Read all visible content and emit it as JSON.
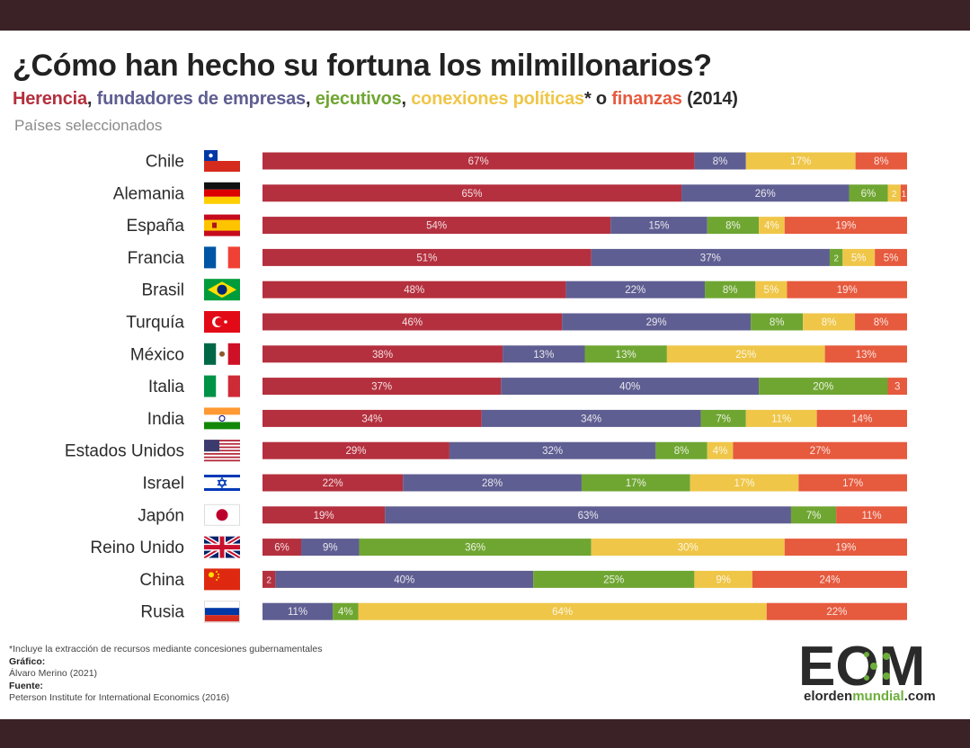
{
  "title": "¿Cómo han hecho su fortuna los milmillonarios?",
  "subtitle": {
    "parts": [
      {
        "text": "Herencia",
        "color": "#b4303e"
      },
      {
        "text": ", ",
        "color": "#2b2b2b"
      },
      {
        "text": "fundadores de empresas",
        "color": "#5f5e92"
      },
      {
        "text": ", ",
        "color": "#2b2b2b"
      },
      {
        "text": "ejecutivos",
        "color": "#6fa632"
      },
      {
        "text": ", ",
        "color": "#2b2b2b"
      },
      {
        "text": "conexiones políticas",
        "color": "#efc648"
      },
      {
        "text": "* o ",
        "color": "#2b2b2b"
      },
      {
        "text": "finanzas",
        "color": "#e65a3e"
      },
      {
        "text": " (2014)",
        "color": "#2b2b2b"
      }
    ]
  },
  "caption": "Países seleccionados",
  "chart_data": {
    "type": "bar",
    "stacked": true,
    "orientation": "horizontal",
    "xlim": [
      0,
      100
    ],
    "colors": [
      "#b4303e",
      "#5f5e92",
      "#6fa632",
      "#efc648",
      "#e65a3e"
    ],
    "countries": [
      {
        "name": "Chile",
        "flag": "chile-flag",
        "values": [
          67,
          8,
          0,
          17,
          8
        ],
        "labels": [
          "67%",
          "8%",
          "",
          "17%",
          "8%"
        ]
      },
      {
        "name": "Alemania",
        "flag": "germany-flag",
        "values": [
          65,
          26,
          6,
          2,
          1
        ],
        "labels": [
          "65%",
          "26%",
          "6%",
          "2",
          "1"
        ]
      },
      {
        "name": "España",
        "flag": "spain-flag",
        "values": [
          54,
          15,
          8,
          4,
          19
        ],
        "labels": [
          "54%",
          "15%",
          "8%",
          "4%",
          "19%"
        ]
      },
      {
        "name": "Francia",
        "flag": "france-flag",
        "values": [
          51,
          37,
          2,
          5,
          5
        ],
        "labels": [
          "51%",
          "37%",
          "2",
          "5%",
          "5%"
        ]
      },
      {
        "name": "Brasil",
        "flag": "brazil-flag",
        "values": [
          48,
          22,
          8,
          5,
          19
        ],
        "labels": [
          "48%",
          "22%",
          "8%",
          "5%",
          "19%"
        ]
      },
      {
        "name": "Turquía",
        "flag": "turkey-flag",
        "values": [
          46,
          29,
          8,
          8,
          8
        ],
        "labels": [
          "46%",
          "29%",
          "8%",
          "8%",
          "8%"
        ]
      },
      {
        "name": "México",
        "flag": "mexico-flag",
        "values": [
          38,
          13,
          13,
          25,
          13
        ],
        "labels": [
          "38%",
          "13%",
          "13%",
          "25%",
          "13%"
        ]
      },
      {
        "name": "Italia",
        "flag": "italy-flag",
        "values": [
          37,
          40,
          20,
          0,
          3
        ],
        "labels": [
          "37%",
          "40%",
          "20%",
          "",
          "3"
        ]
      },
      {
        "name": "India",
        "flag": "india-flag",
        "values": [
          34,
          34,
          7,
          11,
          14
        ],
        "labels": [
          "34%",
          "34%",
          "7%",
          "11%",
          "14%"
        ]
      },
      {
        "name": "Estados Unidos",
        "flag": "usa-flag",
        "values": [
          29,
          32,
          8,
          4,
          27
        ],
        "labels": [
          "29%",
          "32%",
          "8%",
          "4%",
          "27%"
        ]
      },
      {
        "name": "Israel",
        "flag": "israel-flag",
        "values": [
          22,
          28,
          17,
          17,
          17
        ],
        "labels": [
          "22%",
          "28%",
          "17%",
          "17%",
          "17%"
        ]
      },
      {
        "name": "Japón",
        "flag": "japan-flag",
        "values": [
          19,
          63,
          7,
          0,
          11
        ],
        "labels": [
          "19%",
          "63%",
          "7%",
          "",
          "11%"
        ]
      },
      {
        "name": "Reino Unido",
        "flag": "uk-flag",
        "values": [
          6,
          9,
          36,
          30,
          19
        ],
        "labels": [
          "6%",
          "9%",
          "36%",
          "30%",
          "19%"
        ]
      },
      {
        "name": "China",
        "flag": "china-flag",
        "values": [
          2,
          40,
          25,
          9,
          24
        ],
        "labels": [
          "2",
          "40%",
          "25%",
          "9%",
          "24%"
        ]
      },
      {
        "name": "Rusia",
        "flag": "russia-flag",
        "values": [
          0,
          11,
          4,
          64,
          22
        ],
        "labels": [
          "",
          "11%",
          "4%",
          "64%",
          "22%"
        ]
      }
    ]
  },
  "footer": {
    "note": "*Incluye la extracción de recursos mediante concesiones gubernamentales",
    "grafico_label": "Gráfico:",
    "grafico_value": "Álvaro Merino (2021)",
    "fuente_label": "Fuente:",
    "fuente_value": "Peterson Institute for International Economics (2016)"
  },
  "logo": {
    "letters": "EOM",
    "text_a": "elorden",
    "text_b": "mundial",
    "text_c": ".com"
  }
}
